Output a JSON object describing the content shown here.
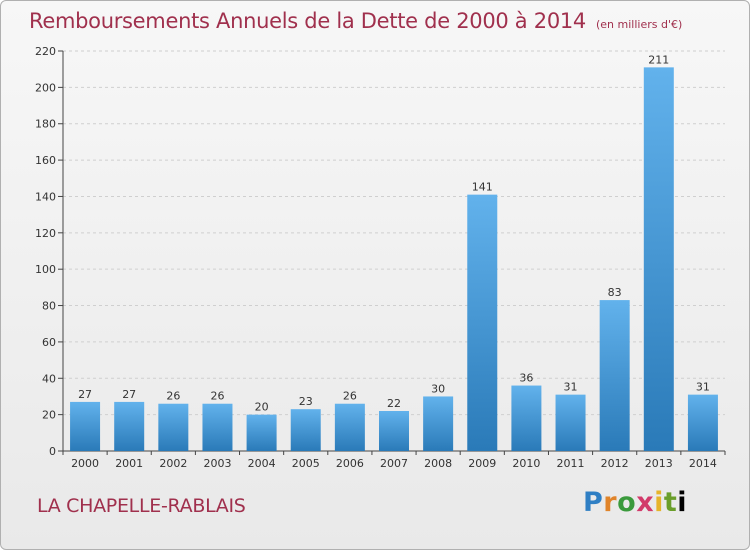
{
  "title": "Remboursements Annuels de la Dette de 2000 à 2014",
  "subtitle": "(en milliers d'€)",
  "place": "LA CHAPELLE-RABLAIS",
  "logo_text": "Proxiti",
  "colors": {
    "title": "#a0304d",
    "bar_top": "#62b2ec",
    "bar_bottom": "#2a7ab8",
    "grid": "#cfcfcf"
  },
  "chart_data": {
    "type": "bar",
    "title": "Remboursements Annuels de la Dette de 2000 à 2014",
    "subtitle": "(en milliers d'€)",
    "xlabel": "",
    "ylabel": "",
    "categories": [
      "2000",
      "2001",
      "2002",
      "2003",
      "2004",
      "2005",
      "2006",
      "2007",
      "2008",
      "2009",
      "2010",
      "2011",
      "2012",
      "2013",
      "2014"
    ],
    "values": [
      27,
      27,
      26,
      26,
      20,
      23,
      26,
      22,
      30,
      141,
      36,
      31,
      83,
      211,
      31
    ],
    "ylim": [
      0,
      220
    ],
    "yticks": [
      0,
      20,
      40,
      60,
      80,
      100,
      120,
      140,
      160,
      180,
      200,
      220
    ],
    "grid": true,
    "legend": "none"
  }
}
